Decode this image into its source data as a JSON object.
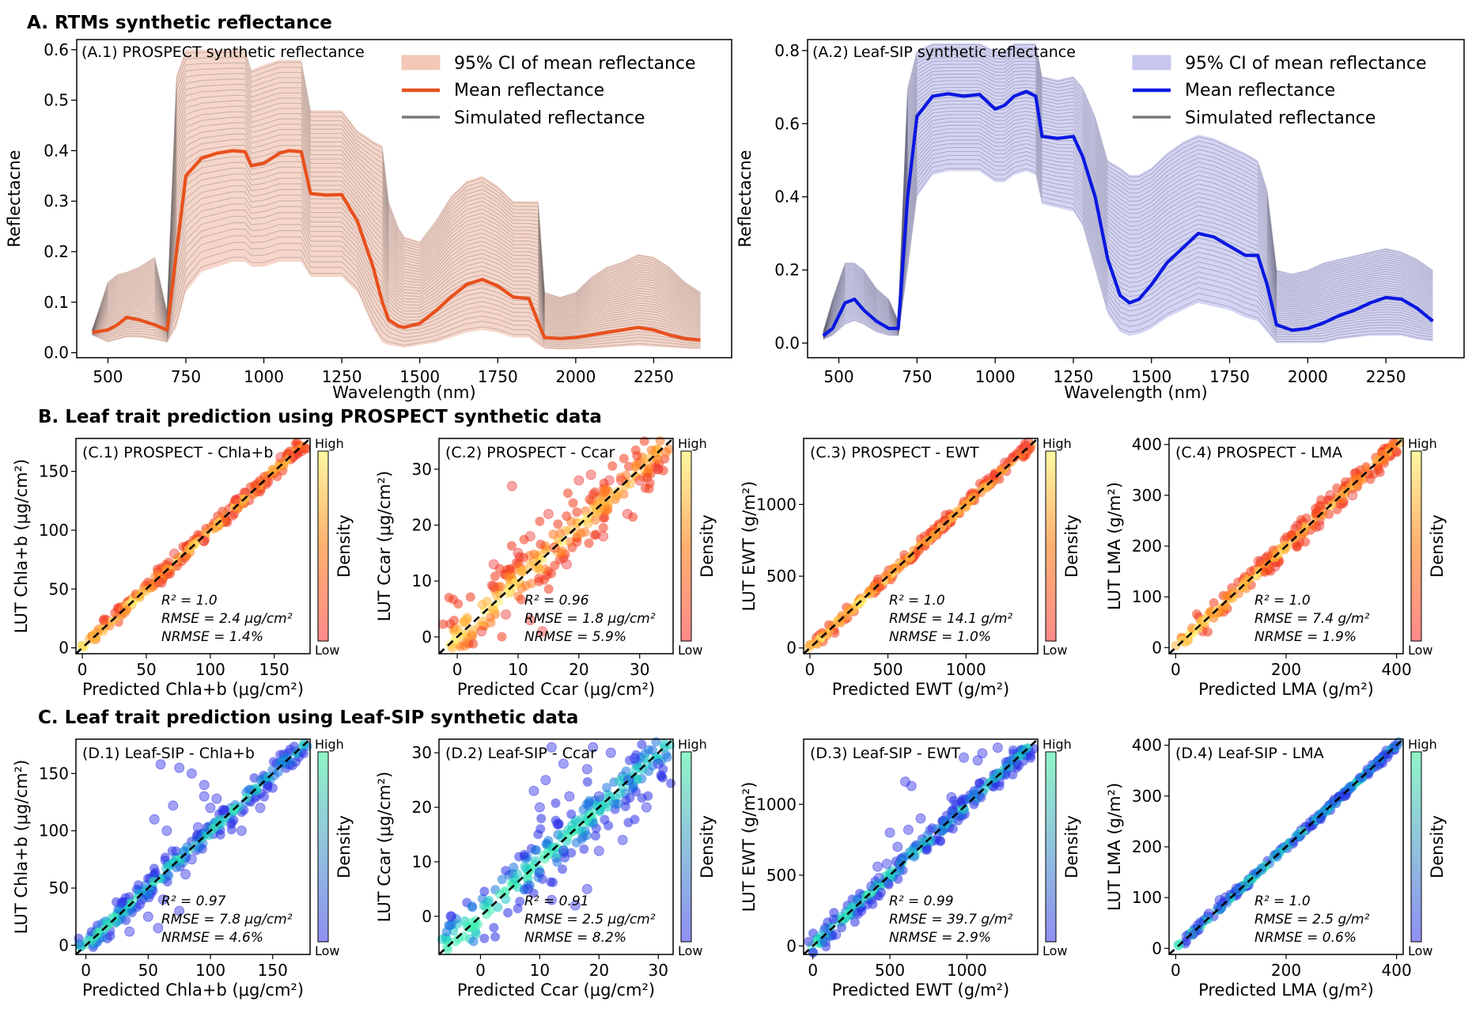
{
  "figure": {
    "section_a": "A. RTMs synthetic reflectance",
    "section_b": "B. Leaf trait prediction using PROSPECT synthetic data",
    "section_c": "C. Leaf trait prediction using Leaf-SIP synthetic data"
  },
  "chart_data": [
    {
      "id": "A1",
      "type": "line",
      "title": "(A.1) PROSPECT synthetic reflectance",
      "xlabel": "Wavelength (nm)",
      "ylabel": "Reflectacne",
      "xlim": [
        400,
        2500
      ],
      "ylim": [
        -0.01,
        0.62
      ],
      "xticks": [
        500,
        750,
        1000,
        1250,
        1500,
        1750,
        2000,
        2250
      ],
      "yticks": [
        0.0,
        0.1,
        0.2,
        0.3,
        0.4,
        0.5,
        0.6
      ],
      "ytick_labels": [
        "0.0",
        "0.1",
        "0.2",
        "0.3",
        "0.4",
        "0.5",
        "0.6"
      ],
      "colors": {
        "mean": "#e8501c",
        "ci": "#f3c8b8",
        "sim": "#6e6464"
      },
      "legend": [
        "95% CI of mean reflectance",
        "Mean reflectance",
        "Simulated reflectance"
      ],
      "x": [
        450,
        500,
        530,
        560,
        600,
        650,
        690,
        720,
        750,
        800,
        850,
        900,
        940,
        960,
        1000,
        1050,
        1080,
        1120,
        1150,
        1200,
        1250,
        1300,
        1350,
        1380,
        1400,
        1430,
        1450,
        1500,
        1550,
        1600,
        1650,
        1700,
        1750,
        1800,
        1850,
        1880,
        1900,
        1950,
        2000,
        2050,
        2100,
        2150,
        2200,
        2250,
        2300,
        2350,
        2400
      ],
      "mean": [
        0.04,
        0.045,
        0.055,
        0.07,
        0.065,
        0.055,
        0.045,
        0.2,
        0.35,
        0.385,
        0.395,
        0.4,
        0.398,
        0.37,
        0.375,
        0.395,
        0.4,
        0.398,
        0.315,
        0.312,
        0.313,
        0.26,
        0.17,
        0.1,
        0.065,
        0.053,
        0.05,
        0.058,
        0.082,
        0.11,
        0.135,
        0.145,
        0.132,
        0.11,
        0.107,
        0.06,
        0.03,
        0.028,
        0.03,
        0.035,
        0.04,
        0.045,
        0.05,
        0.045,
        0.035,
        0.028,
        0.025
      ],
      "ci_upper": [
        0.045,
        0.14,
        0.155,
        0.16,
        0.17,
        0.19,
        0.08,
        0.55,
        0.6,
        0.6,
        0.6,
        0.6,
        0.6,
        0.56,
        0.57,
        0.58,
        0.58,
        0.58,
        0.48,
        0.48,
        0.48,
        0.44,
        0.42,
        0.41,
        0.3,
        0.25,
        0.23,
        0.22,
        0.26,
        0.31,
        0.34,
        0.35,
        0.33,
        0.3,
        0.3,
        0.3,
        0.12,
        0.11,
        0.12,
        0.15,
        0.17,
        0.18,
        0.195,
        0.19,
        0.17,
        0.14,
        0.12
      ],
      "ci_lower": [
        0.035,
        0.02,
        0.025,
        0.03,
        0.03,
        0.025,
        0.02,
        0.05,
        0.12,
        0.16,
        0.17,
        0.18,
        0.18,
        0.17,
        0.17,
        0.18,
        0.18,
        0.18,
        0.15,
        0.15,
        0.15,
        0.12,
        0.05,
        0.02,
        0.015,
        0.012,
        0.01,
        0.015,
        0.02,
        0.03,
        0.04,
        0.045,
        0.04,
        0.03,
        0.03,
        0.015,
        0.008,
        0.006,
        0.007,
        0.008,
        0.01,
        0.012,
        0.014,
        0.012,
        0.01,
        0.008,
        0.007
      ]
    },
    {
      "id": "A2",
      "type": "line",
      "title": "(A.2) Leaf-SIP synthetic reflectance",
      "xlabel": "Wavelength (nm)",
      "ylabel": "Reflectacne",
      "xlim": [
        400,
        2500
      ],
      "ylim": [
        -0.04,
        0.83
      ],
      "xticks": [
        500,
        750,
        1000,
        1250,
        1500,
        1750,
        2000,
        2250
      ],
      "yticks": [
        0.0,
        0.2,
        0.4,
        0.6,
        0.8
      ],
      "ytick_labels": [
        "0.0",
        "0.2",
        "0.4",
        "0.6",
        "0.8"
      ],
      "colors": {
        "mean": "#0a18e0",
        "ci": "#c6c6f0",
        "sim": "#5a5a6e"
      },
      "legend": [
        "95% CI of mean reflectance",
        "Mean reflectance",
        "Simulated reflectance"
      ],
      "x": [
        450,
        480,
        520,
        550,
        580,
        620,
        660,
        690,
        720,
        750,
        800,
        850,
        900,
        950,
        1000,
        1030,
        1060,
        1100,
        1130,
        1150,
        1200,
        1250,
        1280,
        1320,
        1360,
        1400,
        1430,
        1460,
        1500,
        1550,
        1600,
        1650,
        1700,
        1750,
        1800,
        1840,
        1870,
        1900,
        1950,
        2000,
        2050,
        2100,
        2150,
        2200,
        2250,
        2300,
        2350,
        2400
      ],
      "mean": [
        0.02,
        0.04,
        0.11,
        0.12,
        0.09,
        0.06,
        0.04,
        0.04,
        0.4,
        0.62,
        0.675,
        0.682,
        0.675,
        0.68,
        0.64,
        0.65,
        0.675,
        0.688,
        0.675,
        0.565,
        0.56,
        0.565,
        0.51,
        0.4,
        0.23,
        0.13,
        0.11,
        0.12,
        0.16,
        0.22,
        0.26,
        0.3,
        0.29,
        0.265,
        0.24,
        0.24,
        0.16,
        0.05,
        0.035,
        0.04,
        0.055,
        0.075,
        0.09,
        0.11,
        0.125,
        0.12,
        0.095,
        0.06
      ],
      "ci_upper": [
        0.03,
        0.12,
        0.22,
        0.22,
        0.2,
        0.15,
        0.12,
        0.06,
        0.7,
        0.8,
        0.82,
        0.82,
        0.82,
        0.82,
        0.8,
        0.8,
        0.82,
        0.82,
        0.82,
        0.73,
        0.72,
        0.73,
        0.7,
        0.62,
        0.5,
        0.48,
        0.46,
        0.46,
        0.48,
        0.52,
        0.55,
        0.57,
        0.56,
        0.54,
        0.52,
        0.5,
        0.42,
        0.2,
        0.19,
        0.2,
        0.22,
        0.23,
        0.24,
        0.25,
        0.26,
        0.25,
        0.23,
        0.2
      ],
      "ci_lower": [
        0.01,
        0.02,
        0.05,
        0.06,
        0.05,
        0.03,
        0.02,
        0.02,
        0.2,
        0.4,
        0.46,
        0.47,
        0.47,
        0.47,
        0.44,
        0.44,
        0.46,
        0.47,
        0.46,
        0.38,
        0.37,
        0.36,
        0.32,
        0.2,
        0.08,
        0.03,
        0.02,
        0.025,
        0.04,
        0.07,
        0.09,
        0.11,
        0.1,
        0.09,
        0.07,
        0.06,
        0.03,
        0.0,
        0.0,
        0.0,
        0.0,
        0.01,
        0.015,
        0.02,
        0.02,
        0.02,
        0.01,
        0.005
      ]
    },
    {
      "id": "C1",
      "type": "scatter",
      "title": "(C.1) PROSPECT - Chla+b",
      "xlabel": "Predicted Chla+b  (μg/cm²)",
      "ylabel": "LUT Chla+b  (μg/cm²)",
      "lim": [
        -5,
        178
      ],
      "ticks": [
        0,
        50,
        100,
        150
      ],
      "stats": [
        "R² = 1.0",
        "RMSE = 2.4 μg/cm²",
        "NRMSE = 1.4%"
      ],
      "colormap": "hot",
      "spread": 2.4,
      "outliers": [
        [
          60,
          56
        ],
        [
          72,
          80
        ],
        [
          95,
          91
        ],
        [
          120,
          126
        ],
        [
          145,
          141
        ],
        [
          155,
          162
        ],
        [
          165,
          163
        ]
      ],
      "colorbar": {
        "title": "Density",
        "high": "High",
        "low": "Low"
      }
    },
    {
      "id": "C2",
      "type": "scatter",
      "title": "(C.2) PROSPECT - Ccar",
      "xlabel": "Predicted Ccar  (μg/cm²)",
      "ylabel": "LUT Ccar  (μg/cm²)",
      "lim": [
        -3,
        35.5
      ],
      "ticks": [
        0,
        10,
        20,
        30
      ],
      "stats": [
        "R² = 0.96",
        "RMSE = 1.8 μg/cm²",
        "NRMSE = 5.9%"
      ],
      "colormap": "hot",
      "spread": 1.8,
      "outliers": [
        [
          9,
          27
        ],
        [
          12,
          3
        ],
        [
          14,
          1
        ],
        [
          8,
          4
        ],
        [
          6,
          13
        ],
        [
          16,
          16
        ],
        [
          18,
          13
        ],
        [
          10,
          15
        ],
        [
          33,
          30
        ],
        [
          22,
          29
        ],
        [
          25,
          28
        ],
        [
          27,
          28
        ],
        [
          20,
          28
        ],
        [
          30,
          28
        ],
        [
          15,
          22
        ],
        [
          24,
          18
        ],
        [
          28,
          22
        ],
        [
          6,
          9
        ],
        [
          4,
          1
        ],
        [
          12,
          18
        ]
      ],
      "colorbar": {
        "title": "Density",
        "high": "High",
        "low": "Low"
      }
    },
    {
      "id": "C3",
      "type": "scatter",
      "title": "(C.3) PROSPECT - EWT",
      "xlabel": "Predicted EWT  (g/m²)",
      "ylabel": "LUT EWT  (g/m²)",
      "lim": [
        -40,
        1460
      ],
      "ticks": [
        0,
        500,
        1000
      ],
      "stats": [
        "R² = 1.0",
        "RMSE = 14.1 g/m²",
        "NRMSE = 1.0%"
      ],
      "colormap": "hot",
      "spread": 14,
      "outliers": [
        [
          1150,
          1180
        ],
        [
          1300,
          1330
        ],
        [
          1350,
          1380
        ],
        [
          1380,
          1400
        ],
        [
          1250,
          1290
        ],
        [
          1400,
          1430
        ]
      ],
      "colorbar": {
        "title": "Density",
        "high": "High",
        "low": "Low"
      }
    },
    {
      "id": "C4",
      "type": "scatter",
      "title": "(C.4) PROSPECT - LMA",
      "xlabel": "Predicted LMA  (g/m²)",
      "ylabel": "LUT LMA  (g/m²)",
      "lim": [
        -12,
        412
      ],
      "ticks": [
        0,
        200,
        400
      ],
      "yticks": [
        0,
        100,
        200,
        300,
        400
      ],
      "stats": [
        "R² = 1.0",
        "RMSE = 7.4 g/m²",
        "NRMSE = 1.9%"
      ],
      "colormap": "hot",
      "spread": 7.4,
      "outliers": [
        [
          150,
          170
        ],
        [
          180,
          160
        ],
        [
          220,
          240
        ],
        [
          260,
          240
        ],
        [
          280,
          300
        ],
        [
          320,
          300
        ]
      ],
      "colorbar": {
        "title": "Density",
        "high": "High",
        "low": "Low"
      }
    },
    {
      "id": "D1",
      "type": "scatter",
      "title": "(D.1) Leaf-SIP - Chla+b",
      "xlabel": "Predicted Chla+b  (μg/cm²)",
      "ylabel": "LUT Chla+b  (μg/cm²)",
      "lim": [
        -8,
        180
      ],
      "ticks": [
        0,
        50,
        100,
        150
      ],
      "stats": [
        "R² = 0.97",
        "RMSE = 7.8 μg/cm²",
        "NRMSE = 4.6%"
      ],
      "colormap": "winter",
      "spread": 4,
      "outliers": [
        [
          60,
          158
        ],
        [
          75,
          155
        ],
        [
          85,
          150
        ],
        [
          95,
          130
        ],
        [
          100,
          120
        ],
        [
          70,
          122
        ],
        [
          55,
          110
        ],
        [
          65,
          100
        ],
        [
          90,
          103
        ],
        [
          110,
          118
        ],
        [
          45,
          40
        ],
        [
          50,
          25
        ],
        [
          58,
          15
        ],
        [
          75,
          30
        ],
        [
          62,
          40
        ],
        [
          80,
          62
        ],
        [
          85,
          75
        ],
        [
          95,
          140
        ],
        [
          105,
          128
        ],
        [
          35,
          12
        ],
        [
          140,
          120
        ],
        [
          125,
          100
        ]
      ],
      "colorbar": {
        "title": "Density",
        "high": "High",
        "low": "Low"
      }
    },
    {
      "id": "D2",
      "type": "scatter",
      "title": "(D.2) Leaf-SIP - Ccar",
      "xlabel": "Predicted Ccar  (μg/cm²)",
      "ylabel": "LUT Ccar  (μg/cm²)",
      "lim": [
        -7,
        32.5
      ],
      "ticks": [
        0,
        10,
        20,
        30
      ],
      "stats": [
        "R² = 0.91",
        "RMSE = 2.5 μg/cm²",
        "NRMSE = 8.2%"
      ],
      "colormap": "winter",
      "spread": 2.2,
      "outliers": [
        [
          12,
          31
        ],
        [
          14,
          28
        ],
        [
          11,
          25
        ],
        [
          15,
          22
        ],
        [
          10,
          20
        ],
        [
          13,
          17
        ],
        [
          20,
          22
        ],
        [
          22,
          30
        ],
        [
          18,
          27
        ],
        [
          25,
          25
        ],
        [
          16,
          2
        ],
        [
          18,
          5
        ],
        [
          20,
          12
        ],
        [
          24,
          14
        ],
        [
          28,
          20
        ],
        [
          -5,
          0
        ],
        [
          8,
          5
        ],
        [
          10,
          8
        ],
        [
          12,
          3
        ],
        [
          19,
          31
        ],
        [
          26,
          29
        ],
        [
          30,
          28
        ],
        [
          9,
          23
        ],
        [
          14,
          12
        ]
      ],
      "colorbar": {
        "title": "Density",
        "high": "High",
        "low": "Low"
      }
    },
    {
      "id": "D3",
      "type": "scatter",
      "title": "(D.3) Leaf-SIP - EWT",
      "xlabel": "Predicted EWT  (g/m²)",
      "ylabel": "LUT EWT  (g/m²)",
      "lim": [
        -60,
        1460
      ],
      "ticks": [
        0,
        500,
        1000
      ],
      "stats": [
        "R² = 0.99",
        "RMSE = 39.7 g/m²",
        "NRMSE = 2.9%"
      ],
      "colormap": "winter",
      "spread": 28,
      "outliers": [
        [
          600,
          1160
        ],
        [
          640,
          1130
        ],
        [
          980,
          1330
        ],
        [
          1070,
          1310
        ],
        [
          1100,
          1360
        ],
        [
          550,
          700
        ],
        [
          500,
          800
        ],
        [
          480,
          580
        ],
        [
          430,
          480
        ],
        [
          620,
          820
        ],
        [
          700,
          900
        ],
        [
          380,
          420
        ],
        [
          560,
          580
        ],
        [
          80,
          30
        ],
        [
          150,
          80
        ],
        [
          420,
          560
        ],
        [
          900,
          1050
        ],
        [
          1200,
          1400
        ]
      ],
      "colorbar": {
        "title": "Density",
        "high": "High",
        "low": "Low"
      }
    },
    {
      "id": "D4",
      "type": "scatter",
      "title": "(D.4) Leaf-SIP - LMA",
      "xlabel": "Predicted LMA  (g/m²)",
      "ylabel": "LUT LMA  (g/m²)",
      "lim": [
        -12,
        412
      ],
      "ticks": [
        0,
        200,
        400
      ],
      "yticks": [
        0,
        100,
        200,
        300,
        400
      ],
      "stats": [
        "R² = 1.0",
        "RMSE = 2.5 g/m²",
        "NRMSE = 0.6%"
      ],
      "colormap": "winter",
      "spread": 2.5,
      "outliers": [
        [
          80,
          95
        ],
        [
          90,
          100
        ],
        [
          60,
          68
        ],
        [
          110,
          118
        ],
        [
          40,
          45
        ],
        [
          20,
          24
        ]
      ],
      "colorbar": {
        "title": "Density",
        "high": "High",
        "low": "Low"
      }
    }
  ]
}
